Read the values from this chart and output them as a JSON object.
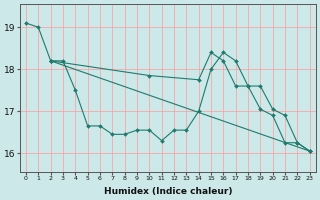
{
  "xlabel": "Humidex (Indice chaleur)",
  "bg_color": "#cce8e8",
  "grid_color": "#ff9999",
  "line_color": "#1e7b6e",
  "xlim": [
    -0.5,
    23.5
  ],
  "ylim": [
    15.55,
    19.55
  ],
  "yticks": [
    16,
    17,
    18,
    19
  ],
  "xticks": [
    0,
    1,
    2,
    3,
    4,
    5,
    6,
    7,
    8,
    9,
    10,
    11,
    12,
    13,
    14,
    15,
    16,
    17,
    18,
    19,
    20,
    21,
    22,
    23
  ],
  "series": [
    {
      "x": [
        0,
        1,
        2
      ],
      "y": [
        19.1,
        19.0,
        18.2
      ]
    },
    {
      "x": [
        2,
        3,
        4,
        5,
        6,
        7,
        8,
        9,
        10,
        11,
        12,
        13,
        14,
        15,
        16,
        17,
        18,
        19,
        20,
        21,
        22,
        23
      ],
      "y": [
        18.2,
        18.2,
        17.5,
        16.65,
        16.65,
        16.45,
        16.45,
        16.55,
        16.55,
        16.3,
        16.55,
        16.55,
        17.0,
        18.0,
        18.4,
        18.2,
        17.6,
        17.6,
        17.05,
        16.9,
        16.25,
        16.05
      ]
    },
    {
      "x": [
        2,
        23
      ],
      "y": [
        18.2,
        16.05
      ]
    },
    {
      "x": [
        2,
        10,
        14,
        15,
        16,
        17,
        18,
        19,
        20,
        21,
        22,
        23
      ],
      "y": [
        18.2,
        17.85,
        17.75,
        18.4,
        18.2,
        17.6,
        17.6,
        17.05,
        16.9,
        16.25,
        16.25,
        16.05
      ]
    }
  ]
}
